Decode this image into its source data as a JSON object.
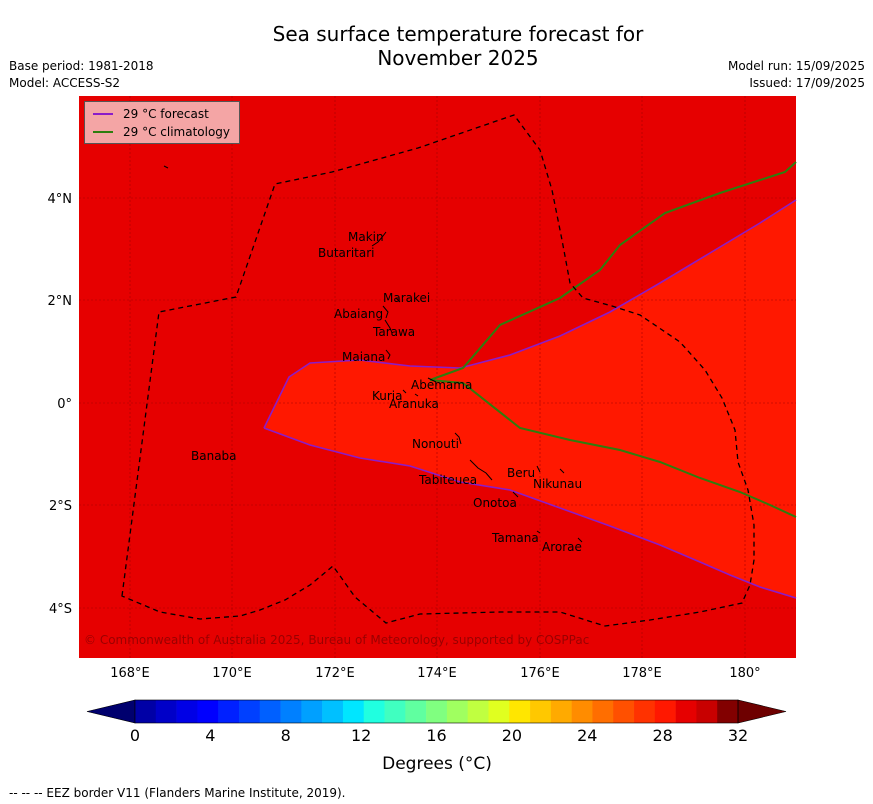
{
  "title": {
    "line1": "Sea surface temperature forecast for",
    "line2": "November 2025"
  },
  "meta_left": {
    "base_period": "Base period: 1981-2018",
    "model": "Model: ACCESS-S2"
  },
  "meta_right": {
    "model_run": "Model run: 15/09/2025",
    "issued": "Issued: 17/09/2025"
  },
  "legend": {
    "forecast": "29 °C  forecast",
    "climatology": "29 °C  climatology",
    "forecast_color": "#8b1cc9",
    "climatology_color": "#2e7d0e"
  },
  "map": {
    "lon_ticks": [
      "168°E",
      "170°E",
      "172°E",
      "174°E",
      "176°E",
      "178°E",
      "180°"
    ],
    "lat_ticks": [
      "4°N",
      "2°N",
      "0°",
      "2°S",
      "4°S"
    ],
    "colors": {
      "outside": "#e60000",
      "inside": "#ff1800"
    },
    "places": [
      "Makin",
      "Butaritari",
      "Marakei",
      "Abaiang",
      "Tarawa",
      "Maiana",
      "Abemama",
      "Kuria",
      "Aranuka",
      "Nonouti",
      "Banaba",
      "Beru",
      "Tabiteuea",
      "Nikunau",
      "Onotoa",
      "Tamana",
      "Arorae"
    ],
    "copyright": "© Commonwealth of Australia 2025, Bureau of Meteorology, supported by COSPPac"
  },
  "colorbar": {
    "tick_labels": [
      "0",
      "4",
      "8",
      "12",
      "16",
      "20",
      "24",
      "28",
      "32"
    ],
    "label": "Degrees (°C)",
    "colors": [
      "#0000a6",
      "#0000c8",
      "#0000e6",
      "#0000ff",
      "#0020ff",
      "#0040ff",
      "#0060ff",
      "#0080ff",
      "#00a0ff",
      "#00c0ff",
      "#00e6ff",
      "#20ffe0",
      "#40ffc0",
      "#60ffa0",
      "#80ff80",
      "#a0ff60",
      "#c0ff40",
      "#e0ff20",
      "#ffe600",
      "#ffc800",
      "#ffaa00",
      "#ff8c00",
      "#ff6e00",
      "#ff5000",
      "#ff3200",
      "#ff1800",
      "#e60000",
      "#c80000",
      "#820000"
    ],
    "min_color": "#00006e",
    "max_color": "#6e0000"
  },
  "footer": "--  --  -- EEZ border V11 (Flanders Marine Institute, 2019)."
}
